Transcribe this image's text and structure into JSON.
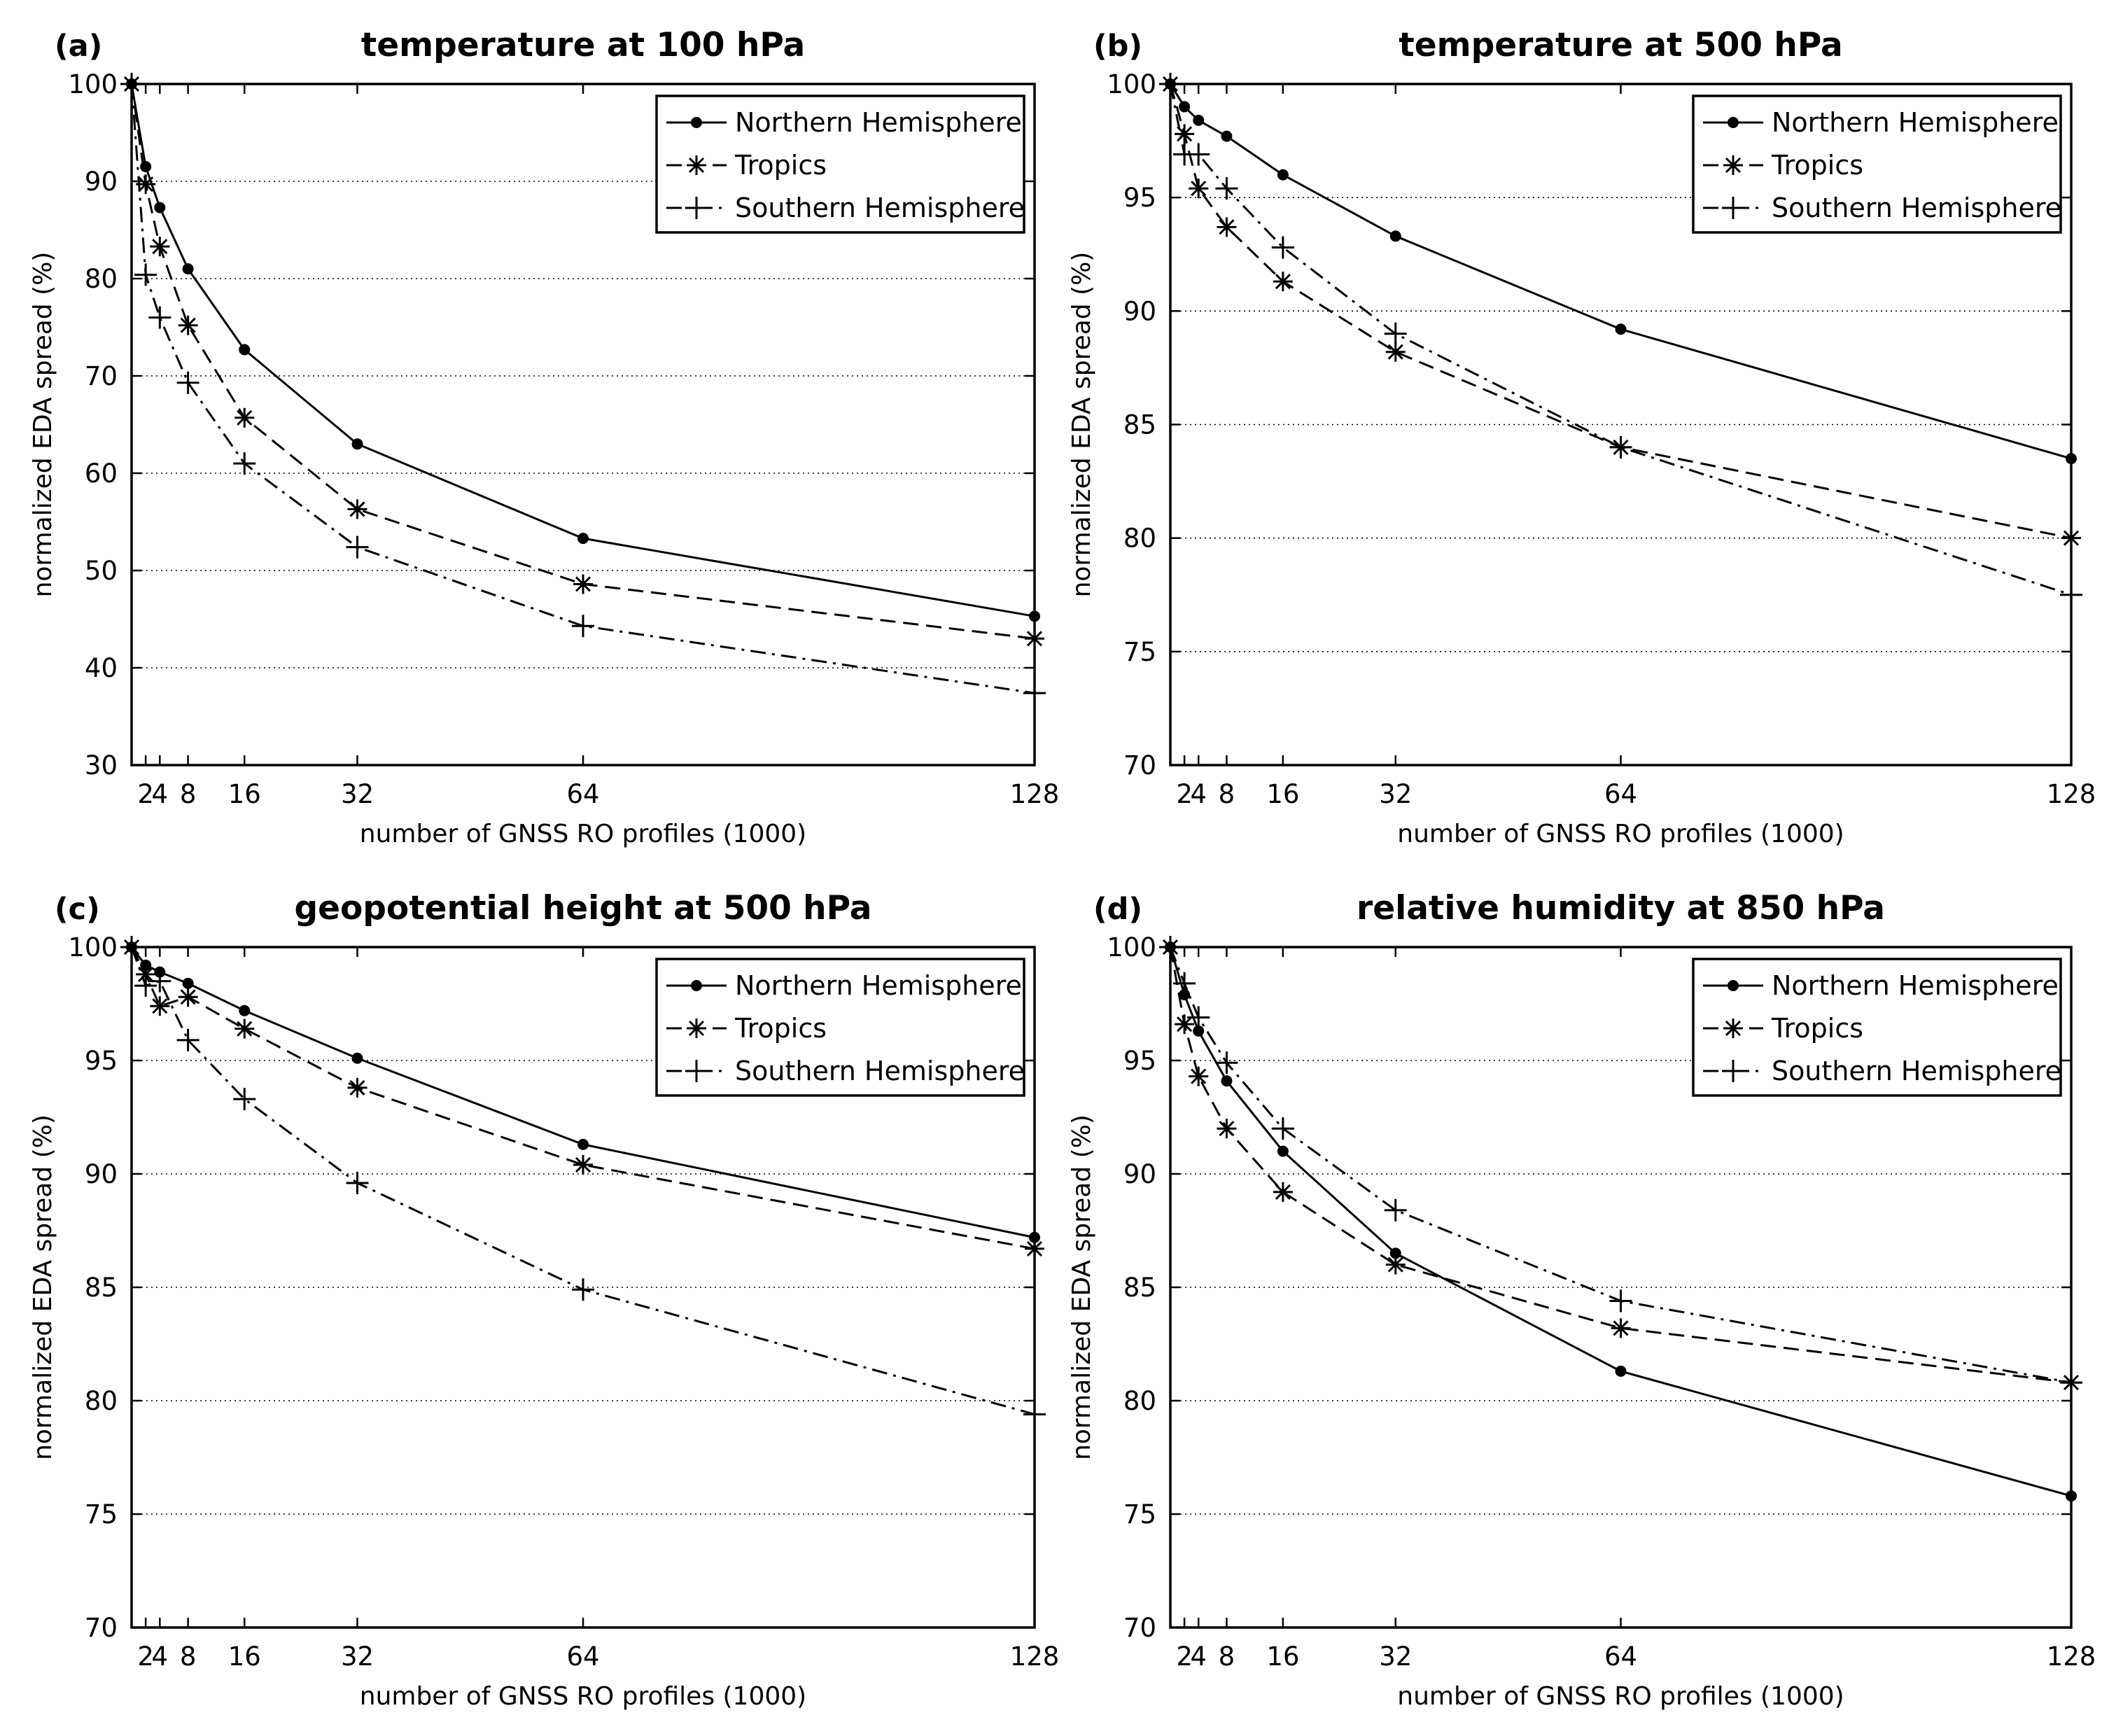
{
  "figure": "four-panel line chart",
  "series_names": [
    "Northern Hemisphere",
    "Tropics",
    "Southern Hemisphere"
  ],
  "chart_data": [
    {
      "type": "line",
      "panel_label": "(a)",
      "title": "temperature at 100 hPa",
      "xlabel": "number of GNSS RO profiles (1000)",
      "ylabel": "normalized EDA spread (%)",
      "xlim": [
        0,
        128
      ],
      "ylim": [
        30,
        100
      ],
      "xticks": [
        2,
        4,
        8,
        16,
        32,
        64,
        128
      ],
      "xtick_labels": [
        "2",
        "4",
        "8",
        "16",
        "32",
        "64",
        "128"
      ],
      "yticks": [
        30,
        40,
        50,
        60,
        70,
        80,
        90,
        100
      ],
      "ytick_labels": [
        "30",
        "40",
        "50",
        "60",
        "70",
        "80",
        "90",
        "100"
      ],
      "grid": "horizontal dotted",
      "legend": "top-right",
      "x": [
        0,
        2,
        4,
        8,
        16,
        32,
        64,
        128
      ],
      "series": [
        {
          "name": "Northern Hemisphere",
          "values": [
            100,
            91.5,
            87.3,
            81,
            72.7,
            63,
            53.3,
            45.3
          ]
        },
        {
          "name": "Tropics",
          "values": [
            100,
            89.7,
            83.3,
            75.2,
            65.7,
            56.3,
            48.6,
            43
          ]
        },
        {
          "name": "Southern Hemisphere",
          "values": [
            100,
            80.4,
            76,
            69.3,
            61,
            52.4,
            44.3,
            37.4
          ]
        }
      ]
    },
    {
      "type": "line",
      "panel_label": "(b)",
      "title": "temperature at 500 hPa",
      "xlabel": "number of GNSS RO profiles (1000)",
      "ylabel": "normalized EDA spread (%)",
      "xlim": [
        0,
        128
      ],
      "ylim": [
        70,
        100
      ],
      "xticks": [
        2,
        4,
        8,
        16,
        32,
        64,
        128
      ],
      "xtick_labels": [
        "2",
        "4",
        "8",
        "16",
        "32",
        "64",
        "128"
      ],
      "yticks": [
        70,
        75,
        80,
        85,
        90,
        95,
        100
      ],
      "ytick_labels": [
        "70",
        "75",
        "80",
        "85",
        "90",
        "95",
        "100"
      ],
      "grid": "horizontal dotted",
      "legend": "top-right",
      "x": [
        0,
        2,
        4,
        8,
        16,
        32,
        64,
        128
      ],
      "series": [
        {
          "name": "Northern Hemisphere",
          "values": [
            100,
            99,
            98.4,
            97.7,
            96,
            93.3,
            89.2,
            83.5
          ]
        },
        {
          "name": "Tropics",
          "values": [
            100,
            97.8,
            95.4,
            93.7,
            91.3,
            88.2,
            84,
            80
          ]
        },
        {
          "name": "Southern Hemisphere",
          "values": [
            100,
            96.9,
            96.9,
            95.4,
            92.8,
            89,
            84,
            77.5
          ]
        }
      ]
    },
    {
      "type": "line",
      "panel_label": "(c)",
      "title": "geopotential height at 500 hPa",
      "xlabel": "number of GNSS RO profiles (1000)",
      "ylabel": "normalized EDA spread (%)",
      "xlim": [
        0,
        128
      ],
      "ylim": [
        70,
        100
      ],
      "xticks": [
        2,
        4,
        8,
        16,
        32,
        64,
        128
      ],
      "xtick_labels": [
        "2",
        "4",
        "8",
        "16",
        "32",
        "64",
        "128"
      ],
      "yticks": [
        70,
        75,
        80,
        85,
        90,
        95,
        100
      ],
      "ytick_labels": [
        "70",
        "75",
        "80",
        "85",
        "90",
        "95",
        "100"
      ],
      "grid": "horizontal dotted",
      "legend": "top-right",
      "x": [
        0,
        2,
        4,
        8,
        16,
        32,
        64,
        128
      ],
      "series": [
        {
          "name": "Northern Hemisphere",
          "values": [
            100,
            99.2,
            98.9,
            98.4,
            97.2,
            95.1,
            91.3,
            87.2
          ]
        },
        {
          "name": "Tropics",
          "values": [
            100,
            98.8,
            97.4,
            97.8,
            96.4,
            93.8,
            90.4,
            86.7
          ]
        },
        {
          "name": "Southern Hemisphere",
          "values": [
            100,
            98.3,
            98.5,
            95.9,
            93.3,
            89.6,
            84.9,
            79.4
          ]
        }
      ]
    },
    {
      "type": "line",
      "panel_label": "(d)",
      "title": "relative humidity at 850 hPa",
      "xlabel": "number of GNSS RO profiles (1000)",
      "ylabel": "normalized EDA spread (%)",
      "xlim": [
        0,
        128
      ],
      "ylim": [
        70,
        100
      ],
      "xticks": [
        2,
        4,
        8,
        16,
        32,
        64,
        128
      ],
      "xtick_labels": [
        "2",
        "4",
        "8",
        "16",
        "32",
        "64",
        "128"
      ],
      "yticks": [
        70,
        75,
        80,
        85,
        90,
        95,
        100
      ],
      "ytick_labels": [
        "70",
        "75",
        "80",
        "85",
        "90",
        "95",
        "100"
      ],
      "grid": "horizontal dotted",
      "legend": "top-right",
      "x": [
        0,
        2,
        4,
        8,
        16,
        32,
        64,
        128
      ],
      "series": [
        {
          "name": "Northern Hemisphere",
          "values": [
            100,
            97.9,
            96.3,
            94.1,
            91,
            86.5,
            81.3,
            75.8
          ]
        },
        {
          "name": "Tropics",
          "values": [
            100,
            96.6,
            94.3,
            92,
            89.2,
            86,
            83.2,
            80.8
          ]
        },
        {
          "name": "Southern Hemisphere",
          "values": [
            100,
            98.4,
            96.9,
            94.9,
            92,
            88.4,
            84.4,
            80.8
          ]
        }
      ]
    }
  ]
}
